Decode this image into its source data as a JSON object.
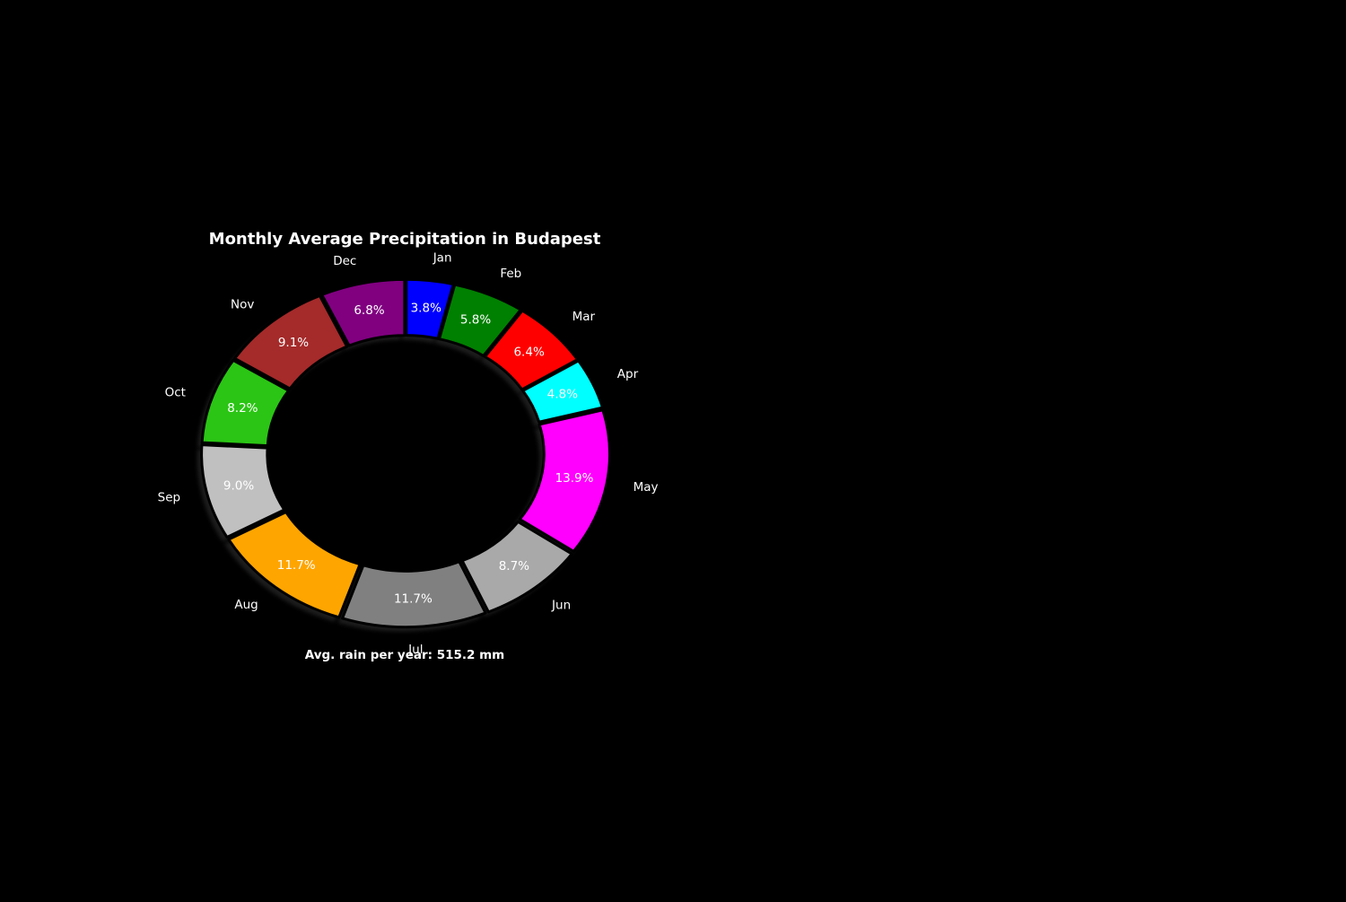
{
  "chart_data": {
    "type": "pie",
    "title": "Monthly Average Precipitation in Budapest",
    "caption": "Avg. rain per year: 515.2 mm",
    "categories": [
      "Jan",
      "Feb",
      "Mar",
      "Apr",
      "May",
      "Jun",
      "Jul",
      "Aug",
      "Sep",
      "Oct",
      "Nov",
      "Dec"
    ],
    "values": [
      3.8,
      5.8,
      6.4,
      4.8,
      13.9,
      8.7,
      11.7,
      11.7,
      9.0,
      8.2,
      9.1,
      6.8
    ],
    "value_labels": [
      "3.8%",
      "5.8%",
      "6.4%",
      "4.8%",
      "13.9%",
      "8.7%",
      "11.7%",
      "11.7%",
      "9.0%",
      "8.2%",
      "9.1%",
      "6.8%"
    ],
    "colors": [
      "#0000ff",
      "#008000",
      "#ff0000",
      "#00ffff",
      "#ff00ff",
      "#a9a9a9",
      "#808080",
      "#ffa500",
      "#c0c0c0",
      "#2bc515",
      "#a52a2a",
      "#800080"
    ],
    "donut": true,
    "start_angle_deg": 90,
    "direction": "clockwise",
    "background": "#000000",
    "text_color": "#ffffff",
    "edge_color": "#000000"
  }
}
